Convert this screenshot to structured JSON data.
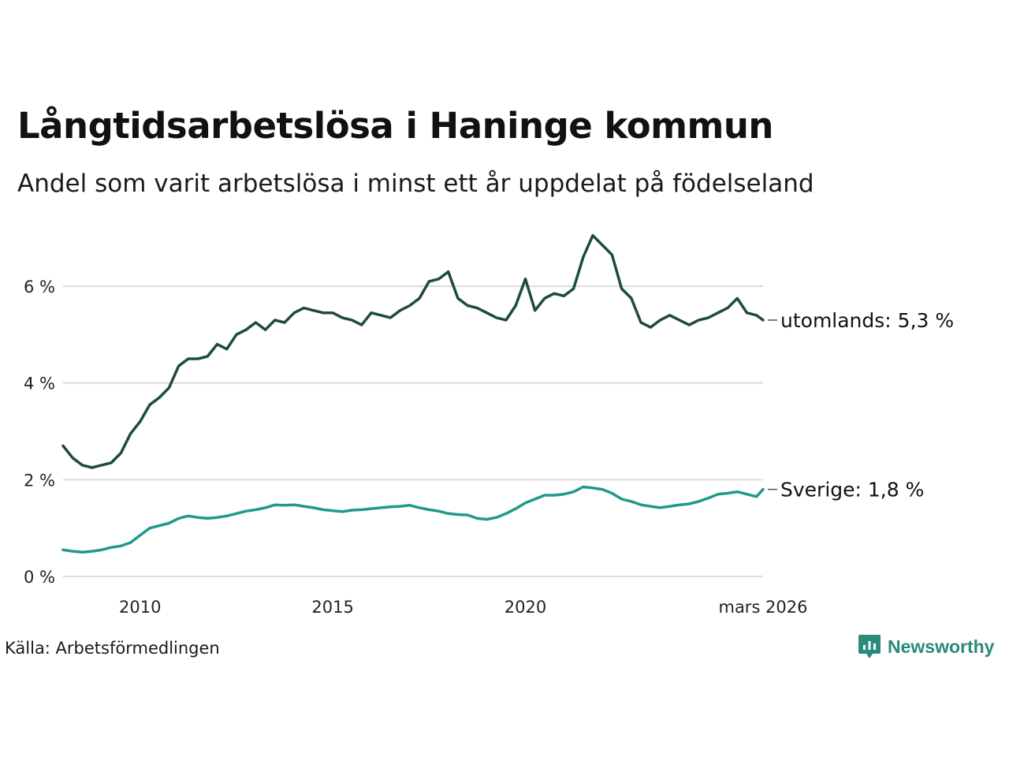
{
  "title": "Långtidsarbetslösa i Haninge kommun",
  "subtitle": "Andel som varit arbetslösa i minst ett år uppdelat på födelseland",
  "source": "Källa: Arbetsförmedlingen",
  "brand": {
    "name": "Newsworthy",
    "color": "#2a8a7c"
  },
  "chart_data": {
    "type": "line",
    "title": "Långtidsarbetslösa i Haninge kommun",
    "xlabel": "",
    "ylabel": "",
    "ylim": [
      0,
      7.2
    ],
    "xlim": [
      2008.0,
      2026.17
    ],
    "yticks": [
      {
        "value": 0,
        "label": "0 %"
      },
      {
        "value": 2,
        "label": "2 %"
      },
      {
        "value": 4,
        "label": "4 %"
      },
      {
        "value": 6,
        "label": "6 %"
      }
    ],
    "xticks": [
      {
        "value": 2010,
        "label": "2010"
      },
      {
        "value": 2015,
        "label": "2015"
      },
      {
        "value": 2020,
        "label": "2020"
      },
      {
        "value": 2026.17,
        "label": "mars 2026"
      }
    ],
    "grid": true,
    "series": [
      {
        "name": "utomlands",
        "end_label": "utomlands: 5,3 %",
        "color": "#1f4a44",
        "x": [
          2008.0,
          2008.25,
          2008.5,
          2008.75,
          2009.0,
          2009.25,
          2009.5,
          2009.75,
          2010.0,
          2010.25,
          2010.5,
          2010.75,
          2011.0,
          2011.25,
          2011.5,
          2011.75,
          2012.0,
          2012.25,
          2012.5,
          2012.75,
          2013.0,
          2013.25,
          2013.5,
          2013.75,
          2014.0,
          2014.25,
          2014.5,
          2014.75,
          2015.0,
          2015.25,
          2015.5,
          2015.75,
          2016.0,
          2016.25,
          2016.5,
          2016.75,
          2017.0,
          2017.25,
          2017.5,
          2017.75,
          2018.0,
          2018.25,
          2018.5,
          2018.75,
          2019.0,
          2019.25,
          2019.5,
          2019.75,
          2020.0,
          2020.25,
          2020.5,
          2020.75,
          2021.0,
          2021.25,
          2021.5,
          2021.75,
          2022.0,
          2022.25,
          2022.5,
          2022.75,
          2023.0,
          2023.25,
          2023.5,
          2023.75,
          2024.0,
          2024.25,
          2024.5,
          2024.75,
          2025.0,
          2025.25,
          2025.5,
          2025.75,
          2026.0,
          2026.17
        ],
        "values": [
          2.7,
          2.45,
          2.3,
          2.25,
          2.3,
          2.35,
          2.55,
          2.95,
          3.2,
          3.55,
          3.7,
          3.9,
          4.35,
          4.5,
          4.5,
          4.55,
          4.8,
          4.7,
          5.0,
          5.1,
          5.25,
          5.1,
          5.3,
          5.25,
          5.45,
          5.55,
          5.5,
          5.45,
          5.45,
          5.35,
          5.3,
          5.2,
          5.45,
          5.4,
          5.35,
          5.5,
          5.6,
          5.75,
          6.1,
          6.15,
          6.3,
          5.75,
          5.6,
          5.55,
          5.45,
          5.35,
          5.3,
          5.6,
          6.15,
          5.5,
          5.75,
          5.85,
          5.8,
          5.95,
          6.6,
          7.05,
          6.85,
          6.65,
          5.95,
          5.75,
          5.25,
          5.15,
          5.3,
          5.4,
          5.3,
          5.2,
          5.3,
          5.35,
          5.45,
          5.55,
          5.75,
          5.45,
          5.4,
          5.3
        ]
      },
      {
        "name": "Sverige",
        "end_label": "Sverige: 1,8 %",
        "color": "#1f9a8a",
        "x": [
          2008.0,
          2008.25,
          2008.5,
          2008.75,
          2009.0,
          2009.25,
          2009.5,
          2009.75,
          2010.0,
          2010.25,
          2010.5,
          2010.75,
          2011.0,
          2011.25,
          2011.5,
          2011.75,
          2012.0,
          2012.25,
          2012.5,
          2012.75,
          2013.0,
          2013.25,
          2013.5,
          2013.75,
          2014.0,
          2014.25,
          2014.5,
          2014.75,
          2015.0,
          2015.25,
          2015.5,
          2015.75,
          2016.0,
          2016.25,
          2016.5,
          2016.75,
          2017.0,
          2017.25,
          2017.5,
          2017.75,
          2018.0,
          2018.25,
          2018.5,
          2018.75,
          2019.0,
          2019.25,
          2019.5,
          2019.75,
          2020.0,
          2020.25,
          2020.5,
          2020.75,
          2021.0,
          2021.25,
          2021.5,
          2021.75,
          2022.0,
          2022.25,
          2022.5,
          2022.75,
          2023.0,
          2023.25,
          2023.5,
          2023.75,
          2024.0,
          2024.25,
          2024.5,
          2024.75,
          2025.0,
          2025.25,
          2025.5,
          2025.75,
          2026.0,
          2026.17
        ],
        "values": [
          0.55,
          0.52,
          0.5,
          0.52,
          0.55,
          0.6,
          0.63,
          0.7,
          0.85,
          1.0,
          1.05,
          1.1,
          1.2,
          1.25,
          1.22,
          1.2,
          1.22,
          1.25,
          1.3,
          1.35,
          1.38,
          1.42,
          1.48,
          1.47,
          1.48,
          1.45,
          1.42,
          1.38,
          1.36,
          1.34,
          1.37,
          1.38,
          1.4,
          1.42,
          1.44,
          1.45,
          1.47,
          1.42,
          1.38,
          1.35,
          1.3,
          1.28,
          1.27,
          1.2,
          1.18,
          1.22,
          1.3,
          1.4,
          1.52,
          1.6,
          1.68,
          1.68,
          1.7,
          1.75,
          1.85,
          1.83,
          1.8,
          1.72,
          1.6,
          1.55,
          1.48,
          1.45,
          1.42,
          1.45,
          1.48,
          1.5,
          1.55,
          1.62,
          1.7,
          1.72,
          1.75,
          1.7,
          1.65,
          1.8
        ]
      }
    ]
  }
}
